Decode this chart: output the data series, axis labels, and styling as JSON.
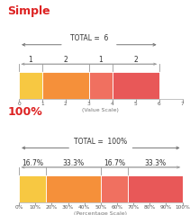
{
  "simple": {
    "title": "Simple",
    "total_label": "TOTAL =  6",
    "segments": [
      1,
      2,
      1,
      2
    ],
    "colors": [
      "#F7C842",
      "#F5903A",
      "#F07060",
      "#E85858"
    ],
    "xlim": [
      0,
      7
    ],
    "xticks": [
      0,
      1,
      2,
      3,
      4,
      5,
      6,
      7
    ],
    "xlabel": "(Value Scale)",
    "seg_labels": [
      "1",
      "2",
      "1",
      "2"
    ],
    "total_span": [
      0,
      6
    ]
  },
  "pct": {
    "title": "100%",
    "total_label": "TOTAL =  100%",
    "segments": [
      16.7,
      33.3,
      16.7,
      33.3
    ],
    "colors": [
      "#F7C842",
      "#F5903A",
      "#F07060",
      "#E85858"
    ],
    "xlim": [
      0,
      100
    ],
    "xticks": [
      0,
      10,
      20,
      30,
      40,
      50,
      60,
      70,
      80,
      90,
      100
    ],
    "xlabel": "(Percentage Scale)",
    "seg_labels": [
      "16.7%",
      "33.3%",
      "16.7%",
      "33.3%"
    ],
    "total_span": [
      0,
      100
    ]
  },
  "title_color": "#DD2222",
  "total_arrow_color": "#777777",
  "seg_arrow_color": "#999999",
  "label_fontsize": 5.5,
  "title_fontsize": 9,
  "total_fontsize": 5.5,
  "xlabel_fontsize": 4.5,
  "tick_fontsize": 4.2
}
